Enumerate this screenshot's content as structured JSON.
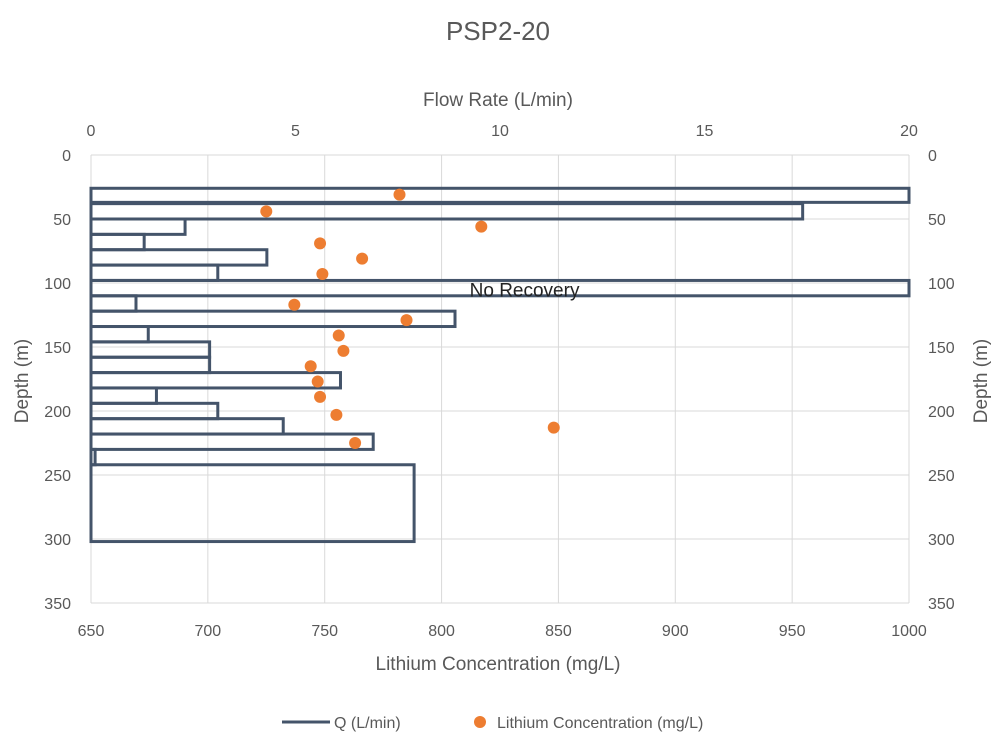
{
  "chart_data": {
    "type": "bar+scatter",
    "title": "PSP2-20",
    "top_axis": {
      "label": "Flow Rate (L/min)",
      "range": [
        0,
        20
      ],
      "ticks": [
        0,
        5,
        10,
        15,
        20
      ]
    },
    "bottom_axis": {
      "label": "Lithium Concentration (mg/L)",
      "range": [
        650,
        1000
      ],
      "ticks": [
        650,
        700,
        750,
        800,
        850,
        900,
        950,
        1000
      ]
    },
    "left_axis": {
      "label": "Depth (m)",
      "range": [
        0,
        350
      ],
      "inverted": true,
      "ticks": [
        0,
        50,
        100,
        150,
        200,
        250,
        300,
        350
      ]
    },
    "right_axis": {
      "label": "Depth (m)",
      "range": [
        0,
        350
      ],
      "inverted": true,
      "ticks": [
        0,
        50,
        100,
        150,
        200,
        250,
        300,
        350
      ]
    },
    "grid": true,
    "series": [
      {
        "name": "Q (L/min)",
        "kind": "horizontal-bar-outline",
        "color": "#44546A",
        "intervals": [
          {
            "top": 26,
            "bottom": 37,
            "value": 20
          },
          {
            "top": 38,
            "bottom": 50,
            "value": 17.4
          },
          {
            "top": 50,
            "bottom": 62,
            "value": 2.3
          },
          {
            "top": 62,
            "bottom": 74,
            "value": 1.3
          },
          {
            "top": 74,
            "bottom": 86,
            "value": 4.3
          },
          {
            "top": 86,
            "bottom": 98,
            "value": 3.1
          },
          {
            "top": 98,
            "bottom": 110,
            "value": 20
          },
          {
            "top": 110,
            "bottom": 122,
            "value": 1.1
          },
          {
            "top": 122,
            "bottom": 134,
            "value": 8.9
          },
          {
            "top": 134,
            "bottom": 146,
            "value": 1.4
          },
          {
            "top": 146,
            "bottom": 158,
            "value": 2.9
          },
          {
            "top": 158,
            "bottom": 170,
            "value": 2.9
          },
          {
            "top": 170,
            "bottom": 182,
            "value": 6.1
          },
          {
            "top": 182,
            "bottom": 194,
            "value": 1.6
          },
          {
            "top": 194,
            "bottom": 206,
            "value": 3.1
          },
          {
            "top": 206,
            "bottom": 218,
            "value": 4.7
          },
          {
            "top": 218,
            "bottom": 230,
            "value": 6.9
          },
          {
            "top": 230,
            "bottom": 242,
            "value": 0.1
          },
          {
            "top": 242,
            "bottom": 302,
            "value": 7.9
          }
        ]
      },
      {
        "name": "Lithium Concentration (mg/L)",
        "kind": "scatter",
        "color": "#ED7D31",
        "points": [
          {
            "x": 782,
            "y": 31
          },
          {
            "x": 725,
            "y": 44
          },
          {
            "x": 817,
            "y": 56
          },
          {
            "x": 748,
            "y": 69
          },
          {
            "x": 766,
            "y": 81
          },
          {
            "x": 749,
            "y": 93
          },
          {
            "x": 737,
            "y": 117
          },
          {
            "x": 785,
            "y": 129
          },
          {
            "x": 756,
            "y": 141
          },
          {
            "x": 758,
            "y": 153
          },
          {
            "x": 744,
            "y": 165
          },
          {
            "x": 747,
            "y": 177
          },
          {
            "x": 748,
            "y": 189
          },
          {
            "x": 755,
            "y": 203
          },
          {
            "x": 848,
            "y": 213
          },
          {
            "x": 763,
            "y": 225
          }
        ]
      }
    ],
    "annotations": [
      {
        "text": "No Recovery",
        "x_flow": 10.6,
        "depth": 105
      }
    ],
    "legend": {
      "placement": "bottom"
    }
  }
}
